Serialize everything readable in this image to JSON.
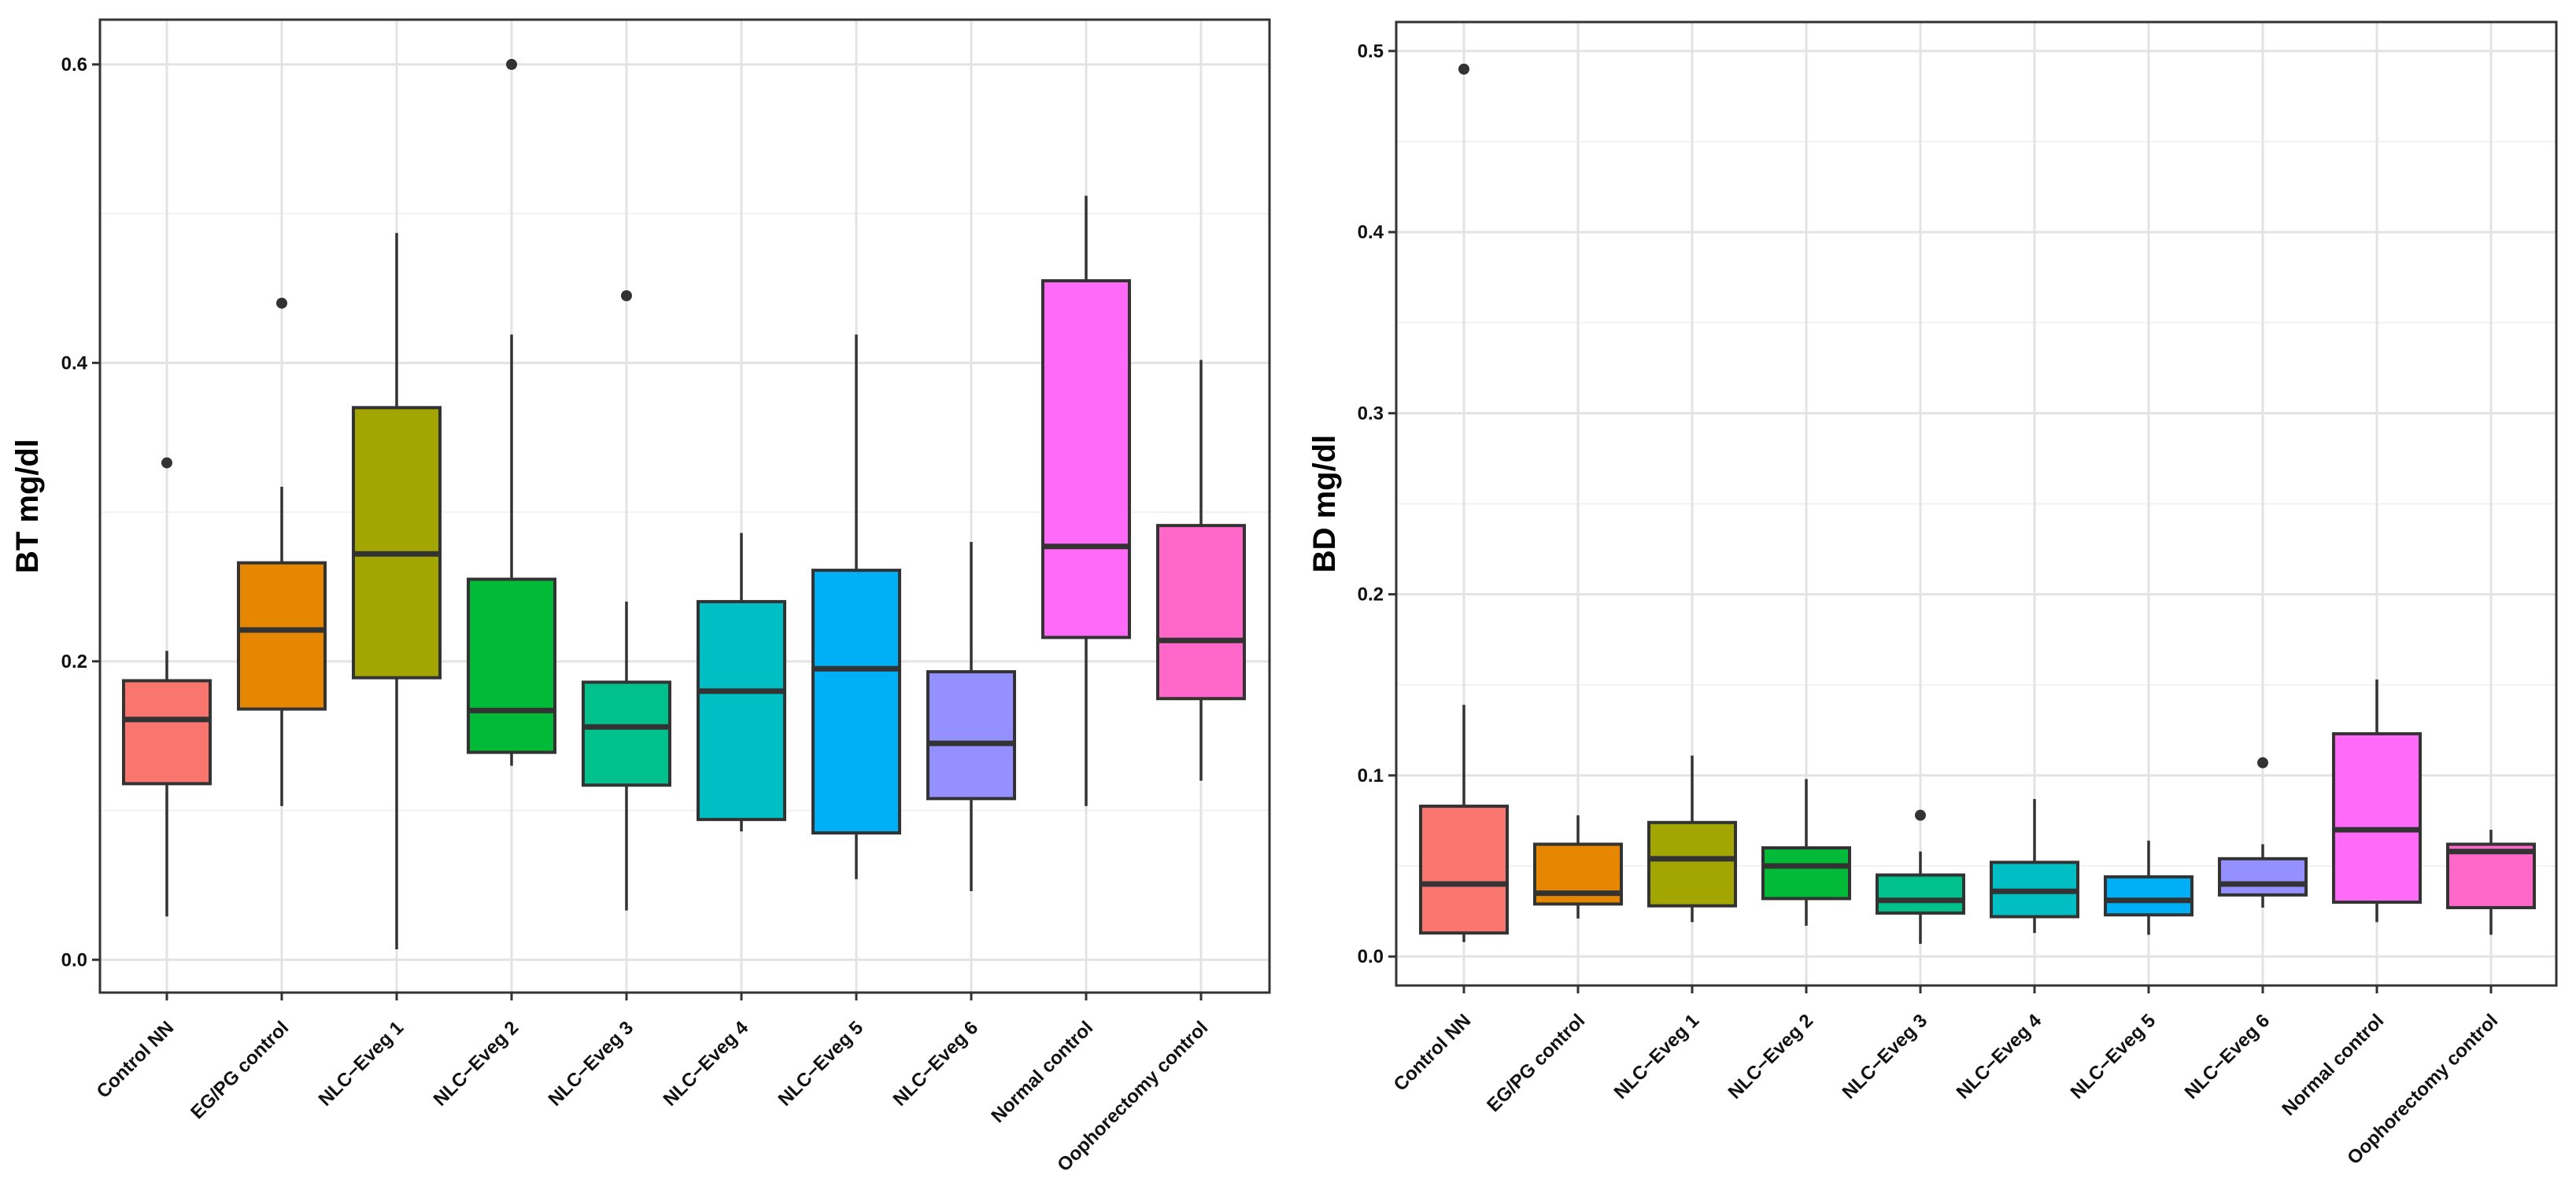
{
  "chart_data": [
    {
      "type": "boxplot",
      "ylabel": "BT mg/dl",
      "xlabel": "",
      "ylim": [
        -0.022,
        0.63
      ],
      "yticks": [
        0.0,
        0.2,
        0.4,
        0.6
      ],
      "ytick_labels": [
        "0.0",
        "0.2",
        "0.4",
        "0.6"
      ],
      "grid": true,
      "categories": [
        "Control NN",
        "EG/PG control",
        "NLC−Eveg 1",
        "NLC−Eveg 2",
        "NLC−Eveg 3",
        "NLC−Eveg 4",
        "NLC−Eveg 5",
        "NLC−Eveg 6",
        "Normal control",
        "Oophorectomy control"
      ],
      "colors": [
        "#F8766D",
        "#E58700",
        "#A3A500",
        "#00BA38",
        "#00C08B",
        "#00BFC4",
        "#00B0F6",
        "#9590FF",
        "#FF6BF8",
        "#FF67C8"
      ],
      "boxes": [
        {
          "min": 0.029,
          "q1": 0.118,
          "median": 0.161,
          "q3": 0.187,
          "max": 0.207,
          "outliers": [
            0.333
          ]
        },
        {
          "min": 0.103,
          "q1": 0.168,
          "median": 0.221,
          "q3": 0.266,
          "max": 0.317,
          "outliers": [
            0.44
          ]
        },
        {
          "min": 0.007,
          "q1": 0.189,
          "median": 0.272,
          "q3": 0.37,
          "max": 0.487,
          "outliers": []
        },
        {
          "min": 0.13,
          "q1": 0.139,
          "median": 0.167,
          "q3": 0.255,
          "max": 0.419,
          "outliers": [
            0.6
          ]
        },
        {
          "min": 0.033,
          "q1": 0.117,
          "median": 0.156,
          "q3": 0.186,
          "max": 0.24,
          "outliers": [
            0.445
          ]
        },
        {
          "min": 0.086,
          "q1": 0.094,
          "median": 0.18,
          "q3": 0.24,
          "max": 0.286,
          "outliers": []
        },
        {
          "min": 0.054,
          "q1": 0.085,
          "median": 0.195,
          "q3": 0.261,
          "max": 0.419,
          "outliers": []
        },
        {
          "min": 0.046,
          "q1": 0.108,
          "median": 0.145,
          "q3": 0.193,
          "max": 0.28,
          "outliers": []
        },
        {
          "min": 0.103,
          "q1": 0.216,
          "median": 0.277,
          "q3": 0.455,
          "max": 0.512,
          "outliers": []
        },
        {
          "min": 0.12,
          "q1": 0.175,
          "median": 0.214,
          "q3": 0.291,
          "max": 0.402,
          "outliers": []
        }
      ]
    },
    {
      "type": "boxplot",
      "ylabel": "BD mg/dl",
      "xlabel": "",
      "ylim": [
        -0.016,
        0.516
      ],
      "yticks": [
        0.0,
        0.1,
        0.2,
        0.3,
        0.4,
        0.5
      ],
      "ytick_labels": [
        "0.0",
        "0.1",
        "0.2",
        "0.3",
        "0.4",
        "0.5"
      ],
      "grid": true,
      "categories": [
        "Control NN",
        "EG/PG control",
        "NLC−Eveg 1",
        "NLC−Eveg 2",
        "NLC−Eveg 3",
        "NLC−Eveg 4",
        "NLC−Eveg 5",
        "NLC−Eveg 6",
        "Normal control",
        "Oophorectomy control"
      ],
      "colors": [
        "#F8766D",
        "#E58700",
        "#A3A500",
        "#00BA38",
        "#00C08B",
        "#00BFC4",
        "#00B0F6",
        "#9590FF",
        "#FF6BF8",
        "#FF67C8"
      ],
      "boxes": [
        {
          "min": 0.008,
          "q1": 0.013,
          "median": 0.04,
          "q3": 0.083,
          "max": 0.139,
          "outliers": [
            0.49
          ]
        },
        {
          "min": 0.021,
          "q1": 0.029,
          "median": 0.035,
          "q3": 0.062,
          "max": 0.078,
          "outliers": []
        },
        {
          "min": 0.019,
          "q1": 0.028,
          "median": 0.054,
          "q3": 0.074,
          "max": 0.111,
          "outliers": []
        },
        {
          "min": 0.017,
          "q1": 0.032,
          "median": 0.05,
          "q3": 0.06,
          "max": 0.098,
          "outliers": []
        },
        {
          "min": 0.007,
          "q1": 0.024,
          "median": 0.031,
          "q3": 0.045,
          "max": 0.058,
          "outliers": [
            0.078
          ]
        },
        {
          "min": 0.013,
          "q1": 0.022,
          "median": 0.036,
          "q3": 0.052,
          "max": 0.087,
          "outliers": []
        },
        {
          "min": 0.012,
          "q1": 0.023,
          "median": 0.031,
          "q3": 0.044,
          "max": 0.064,
          "outliers": []
        },
        {
          "min": 0.027,
          "q1": 0.034,
          "median": 0.04,
          "q3": 0.054,
          "max": 0.062,
          "outliers": [
            0.107
          ]
        },
        {
          "min": 0.019,
          "q1": 0.03,
          "median": 0.07,
          "q3": 0.123,
          "max": 0.153,
          "outliers": []
        },
        {
          "min": 0.012,
          "q1": 0.027,
          "median": 0.058,
          "q3": 0.062,
          "max": 0.07,
          "outliers": []
        }
      ]
    }
  ]
}
